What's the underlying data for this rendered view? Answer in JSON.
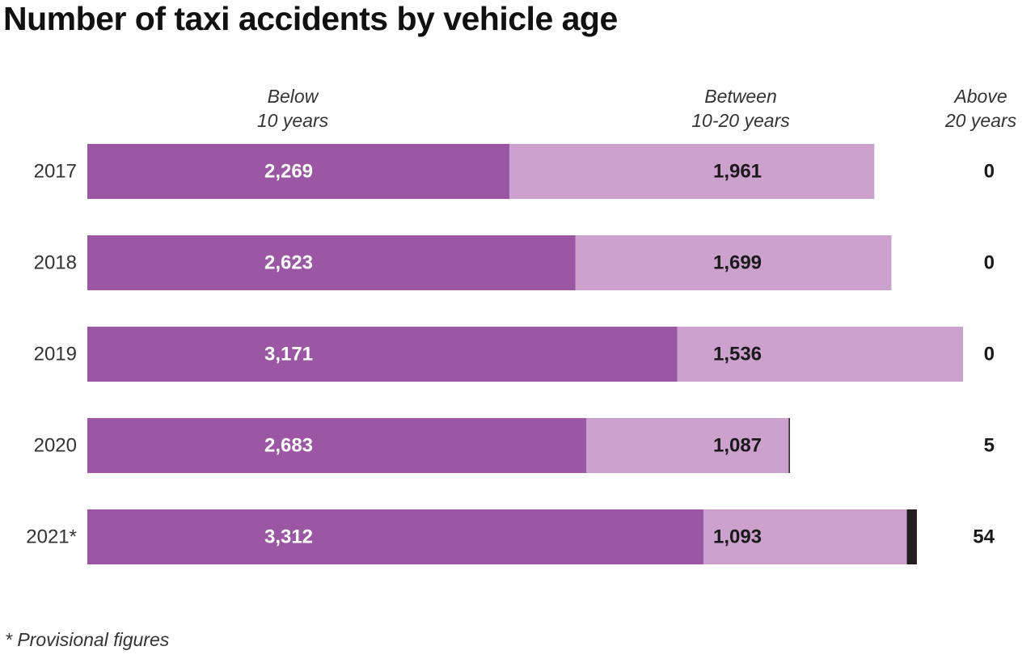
{
  "title": "Number of taxi accidents by vehicle age",
  "footnote": "* Provisional figures",
  "headers": {
    "below": {
      "line1": "Below",
      "line2": "10 years"
    },
    "between": {
      "line1": "Between",
      "line2": "10-20 years"
    },
    "above": {
      "line1": "Above",
      "line2": "20 years"
    }
  },
  "colors": {
    "below": "#9b57a3",
    "between": "#cca1cd",
    "above": "#231f20",
    "below_text": "#ffffff",
    "between_text": "#1a1a1a",
    "above_text": "#1a1a1a"
  },
  "chart_data": {
    "type": "bar",
    "orientation": "horizontal",
    "stacked": true,
    "categories": [
      "2017",
      "2018",
      "2019",
      "2020",
      "2021*"
    ],
    "series": [
      {
        "name": "Below 10 years",
        "values": [
          2269,
          2623,
          3171,
          2683,
          3312
        ],
        "labels": [
          "2,269",
          "2,623",
          "3,171",
          "2,683",
          "3,312"
        ]
      },
      {
        "name": "Between 10-20 years",
        "values": [
          1961,
          1699,
          1536,
          1087,
          1093
        ],
        "labels": [
          "1,961",
          "1,699",
          "1,536",
          "1,087",
          "1,093"
        ]
      },
      {
        "name": "Above 20 years",
        "values": [
          0,
          0,
          0,
          5,
          54
        ],
        "labels": [
          "0",
          "0",
          "0",
          "5",
          "54"
        ]
      }
    ],
    "xlim": [
      0,
      4707
    ],
    "title": "Number of taxi accidents by vehicle age",
    "grid": false
  }
}
